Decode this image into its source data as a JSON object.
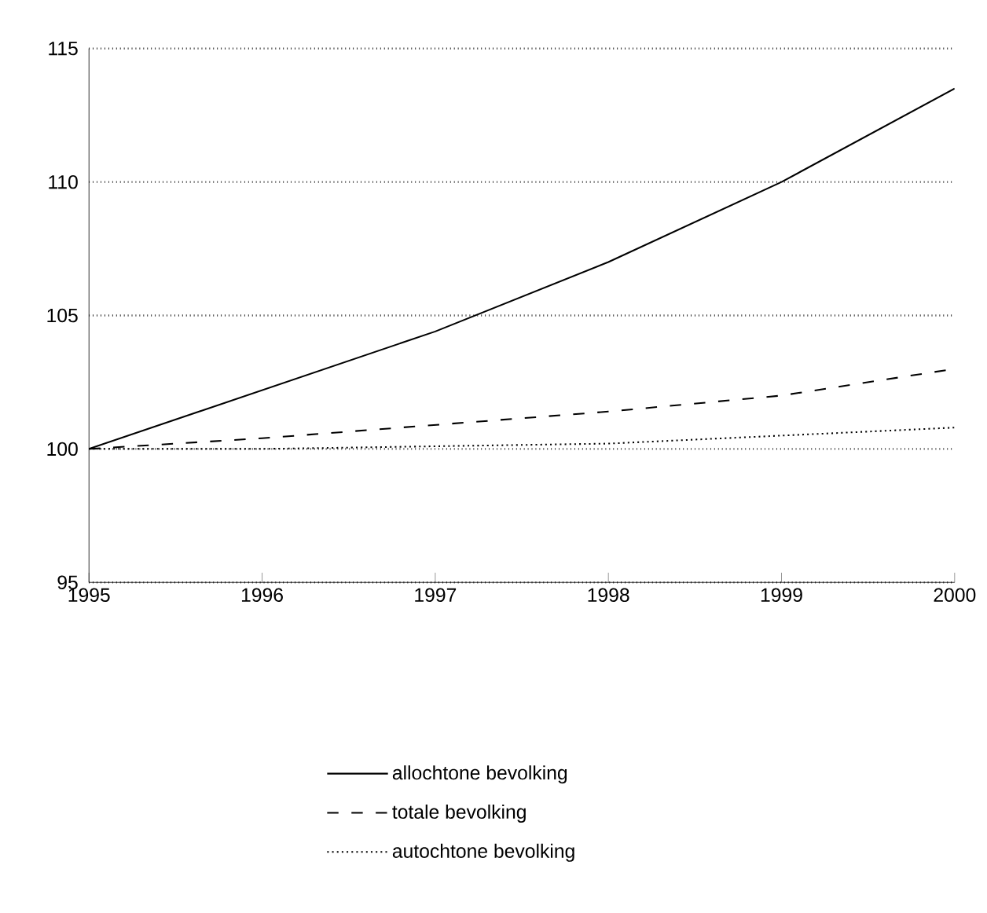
{
  "chart_data": {
    "type": "line",
    "x": [
      1995,
      1996,
      1997,
      1998,
      1999,
      2000
    ],
    "series": [
      {
        "name": "allochtone bevolking",
        "color": "#000000",
        "line_style": "solid",
        "values": [
          100,
          102.2,
          104.4,
          107,
          110,
          113.5
        ]
      },
      {
        "name": "totale bevolking",
        "color": "#000000",
        "line_style": "dashed",
        "values": [
          100,
          100.4,
          100.9,
          101.4,
          102,
          103
        ]
      },
      {
        "name": "autochtone bevolking",
        "color": "#000000",
        "line_style": "dotted",
        "values": [
          100,
          100,
          100.1,
          100.2,
          100.5,
          100.8
        ]
      }
    ],
    "xlim": [
      1995,
      2000
    ],
    "ylim": [
      95,
      115
    ],
    "xticks": [
      1995,
      1996,
      1997,
      1998,
      1999,
      2000
    ],
    "yticks": [
      95,
      100,
      105,
      110,
      115
    ],
    "grid": "y",
    "legend": "bottom",
    "marker": "none"
  }
}
